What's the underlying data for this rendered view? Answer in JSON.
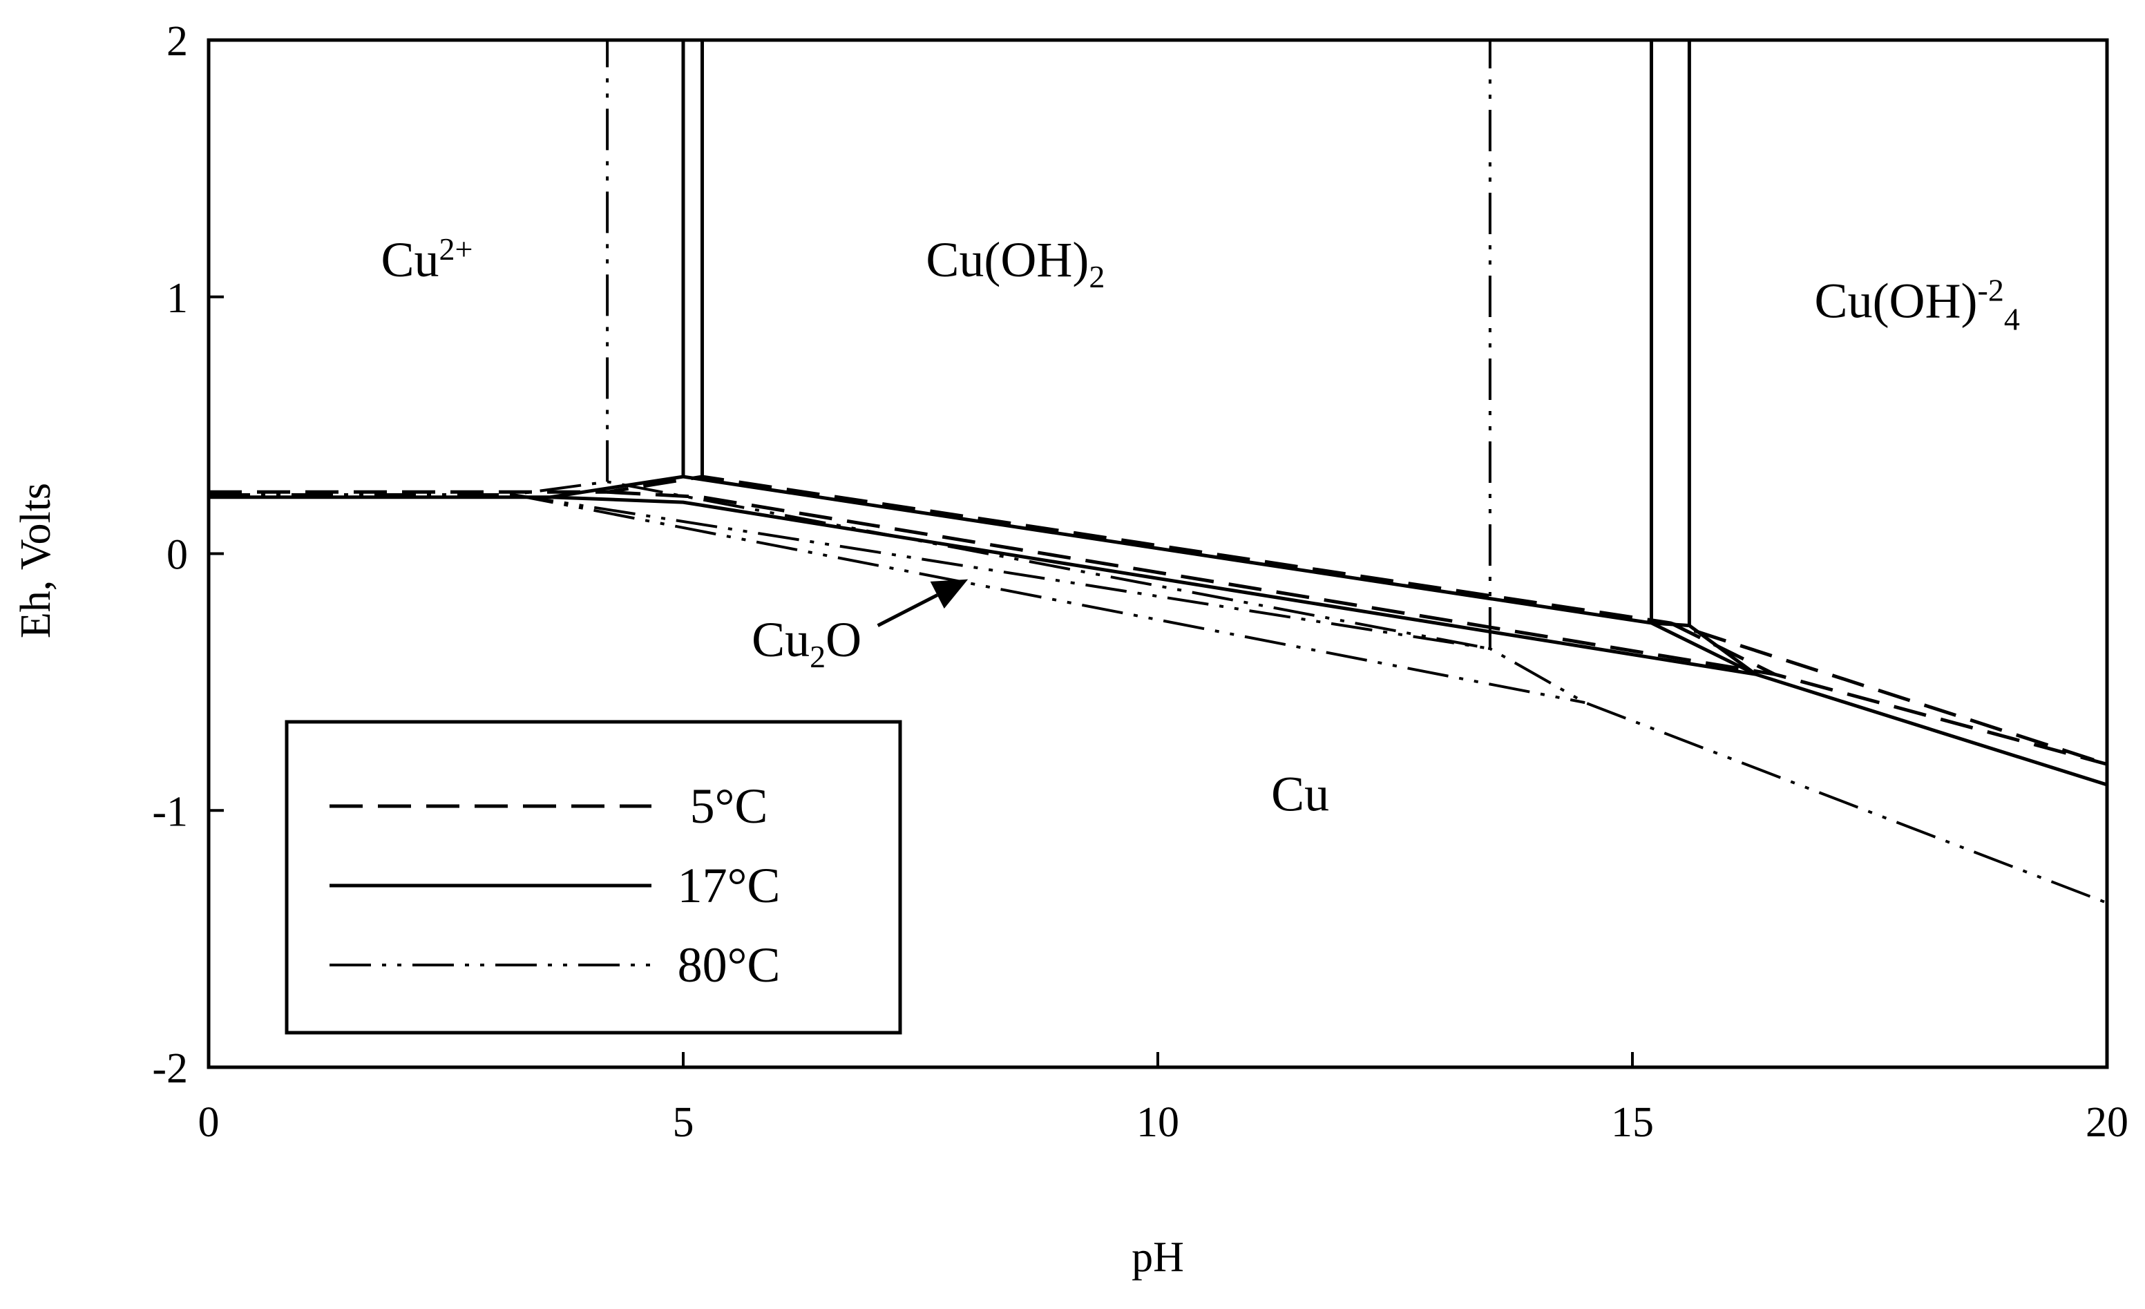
{
  "chart_data": {
    "type": "line",
    "title": "",
    "xlabel": "pH",
    "ylabel": "Eh, Volts",
    "xlim": [
      0,
      20
    ],
    "ylim": [
      -2,
      2
    ],
    "xticks": [
      0,
      5,
      10,
      15,
      20
    ],
    "yticks": [
      -2,
      -1,
      0,
      1,
      2
    ],
    "xtick_labels": [
      "0",
      "5",
      "10",
      "15",
      "20"
    ],
    "ytick_labels": [
      "-2",
      "-1",
      "0",
      "1",
      "2"
    ],
    "grid": false,
    "legend_position": "bottom-left",
    "region_labels": [
      {
        "id": "cu2plus",
        "base": "Cu",
        "sup": "2+",
        "sub": "",
        "x": 2.3,
        "y": 1.08
      },
      {
        "id": "cuoh2",
        "base": "Cu(OH)",
        "sup": "",
        "sub": "2",
        "x": 8.5,
        "y": 1.08
      },
      {
        "id": "cuoh4",
        "base": "Cu(OH)",
        "sup": "-2",
        "sub": "4",
        "x": 18.0,
        "y": 0.92
      },
      {
        "id": "cu",
        "base": "Cu",
        "sup": "",
        "sub": "",
        "x": 11.5,
        "y": -1.0
      },
      {
        "id": "cu2o",
        "base": "Cu",
        "sup": "",
        "sub": "2",
        "tail": "O",
        "x": 6.3,
        "y": -0.4
      }
    ],
    "arrow": {
      "from": [
        7.05,
        -0.28
      ],
      "to": [
        8.0,
        -0.1
      ]
    },
    "series": [
      {
        "name": "5°C",
        "style": "dashed",
        "segments": [
          [
            [
              0,
              0.24
            ],
            [
              4.2,
              0.24
            ],
            [
              5.2,
              0.3
            ],
            [
              15.4,
              -0.27
            ],
            [
              20,
              -0.82
            ]
          ],
          [
            [
              4.2,
              0.24
            ],
            [
              5.2,
              0.22
            ],
            [
              16.5,
              -0.47
            ],
            [
              20,
              -0.82
            ]
          ],
          [
            [
              5.2,
              0.3
            ],
            [
              5.2,
              2
            ]
          ],
          [
            [
              15.4,
              -0.27
            ],
            [
              16.5,
              -0.47
            ]
          ]
        ]
      },
      {
        "name": "17°C",
        "style": "solid",
        "segments": [
          [
            [
              0,
              0.22
            ],
            [
              3.6,
              0.22
            ],
            [
              5.0,
              0.3
            ],
            [
              15.2,
              -0.27
            ],
            [
              16.3,
              -0.47
            ],
            [
              20,
              -0.9
            ]
          ],
          [
            [
              3.6,
              0.22
            ],
            [
              5.0,
              0.2
            ],
            [
              16.3,
              -0.47
            ]
          ],
          [
            [
              5.0,
              0.3
            ],
            [
              5.0,
              2
            ]
          ],
          [
            [
              15.2,
              -0.27
            ],
            [
              15.2,
              2
            ]
          ],
          [
            [
              15.2,
              -0.27
            ],
            [
              15.6,
              -0.28
            ],
            [
              16.3,
              -0.47
            ]
          ],
          [
            [
              15.6,
              -0.28
            ],
            [
              15.6,
              2
            ]
          ],
          [
            [
              5.2,
              0.3
            ],
            [
              5.2,
              2
            ]
          ]
        ]
      },
      {
        "name": "80°C",
        "style": "dash-dot-dot",
        "segments": [
          [
            [
              0,
              0.23
            ],
            [
              3.2,
              0.23
            ],
            [
              4.2,
              0.28
            ],
            [
              13.5,
              -0.37
            ],
            [
              14.5,
              -0.58
            ],
            [
              20,
              -1.36
            ]
          ],
          [
            [
              3.2,
              0.23
            ],
            [
              13.5,
              -0.37
            ]
          ],
          [
            [
              3.2,
              0.23
            ],
            [
              14.5,
              -0.58
            ]
          ],
          [
            [
              4.2,
              0.28
            ],
            [
              4.2,
              2
            ]
          ],
          [
            [
              13.5,
              -0.37
            ],
            [
              13.5,
              2
            ]
          ]
        ]
      }
    ]
  }
}
